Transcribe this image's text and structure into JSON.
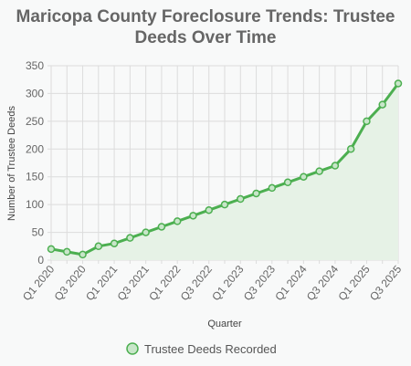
{
  "chart_data": {
    "type": "area",
    "title_lines": [
      "Maricopa County Foreclosure Trends: Trustee",
      "Deeds Over Time"
    ],
    "xlabel": "Quarter",
    "ylabel": "Number of Trustee Deeds",
    "ylim": [
      0,
      350
    ],
    "yticks": [
      "0",
      "50",
      "100",
      "150",
      "200",
      "250",
      "300",
      "350"
    ],
    "x": [
      "Q1 2020",
      "Q2 2020",
      "Q3 2020",
      "Q4 2020",
      "Q1 2021",
      "Q2 2021",
      "Q3 2021",
      "Q4 2021",
      "Q1 2022",
      "Q2 2022",
      "Q3 2022",
      "Q4 2022",
      "Q1 2023",
      "Q2 2023",
      "Q3 2023",
      "Q4 2023",
      "Q1 2024",
      "Q2 2024",
      "Q3 2024",
      "Q4 2024",
      "Q1 2025",
      "Q2 2025",
      "Q3 2025"
    ],
    "xtick_labels": [
      "Q1 2020",
      "Q3 2020",
      "Q1 2021",
      "Q3 2021",
      "Q1 2022",
      "Q3 2022",
      "Q1 2023",
      "Q3 2023",
      "Q1 2024",
      "Q3 2024",
      "Q1 2025",
      "Q3 2025"
    ],
    "series": [
      {
        "name": "Trustee Deeds Recorded",
        "values": [
          20,
          15,
          10,
          25,
          30,
          40,
          50,
          60,
          70,
          80,
          90,
          100,
          110,
          120,
          130,
          140,
          150,
          160,
          170,
          200,
          250,
          280,
          318
        ]
      }
    ],
    "grid": true,
    "legend": "bottom",
    "colors": {
      "line": "#4caf50",
      "fill": "#e6f2e6",
      "point_fill": "#c8e6c9"
    }
  }
}
